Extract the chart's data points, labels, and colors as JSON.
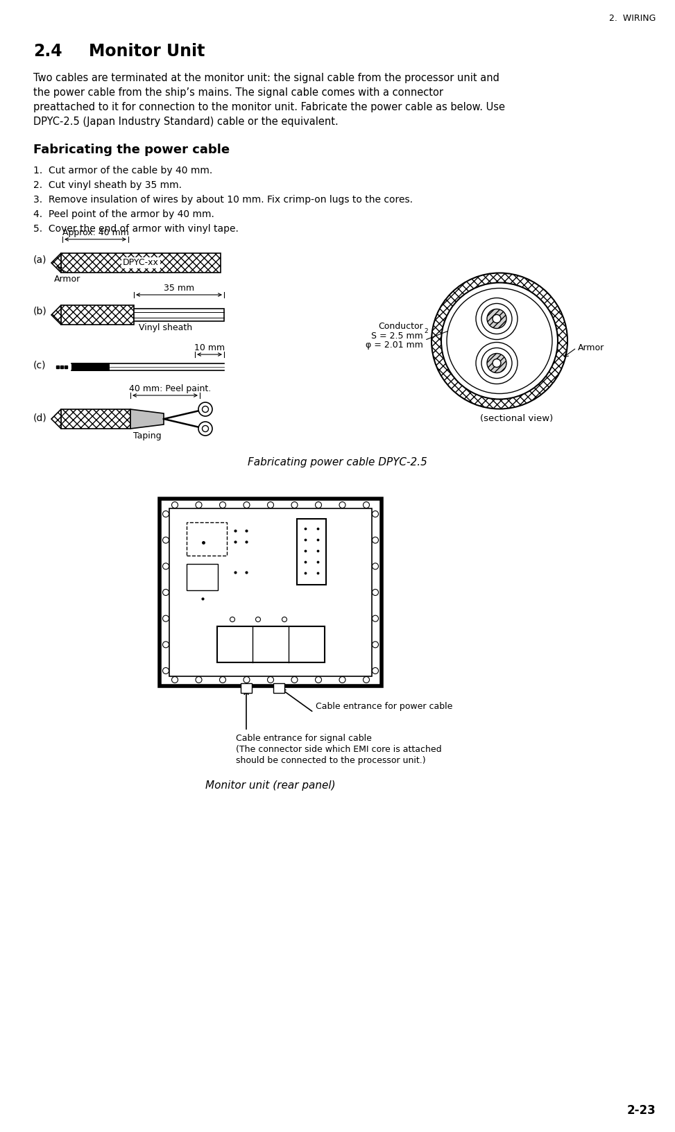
{
  "page_title": "2.  WIRING",
  "section": "2.4",
  "section_title": "Monitor Unit",
  "body_line1": "Two cables are terminated at the monitor unit: the signal cable from the processor unit and",
  "body_line2": "the power cable from the ship’s mains. The signal cable comes with a connector",
  "body_line3": "preattached to it for connection to the monitor unit. Fabricate the power cable as below. Use",
  "body_line4": "DPYC-2.5 (Japan Industry Standard) cable or the equivalent.",
  "subsection_title": "Fabricating the power cable",
  "steps": [
    "1.  Cut armor of the cable by 40 mm.",
    "2.  Cut vinyl sheath by 35 mm.",
    "3.  Remove insulation of wires by about 10 mm. Fix crimp-on lugs to the cores.",
    "4.  Peel point of the armor by 40 mm.",
    "5.  Cover the end of armor with vinyl tape."
  ],
  "fig1_caption": "Fabricating power cable DPYC-2.5",
  "fig2_caption": "Monitor unit (rear panel)",
  "cable_entrance_power": "Cable entrance for power cable",
  "cable_entrance_signal_line1": "Cable entrance for signal cable",
  "cable_entrance_signal_line2": "(The connector side which EMI core is attached",
  "cable_entrance_signal_line3": "should be connected to the processor unit.)",
  "page_number": "2-23",
  "bg_color": "#ffffff",
  "text_color": "#000000"
}
